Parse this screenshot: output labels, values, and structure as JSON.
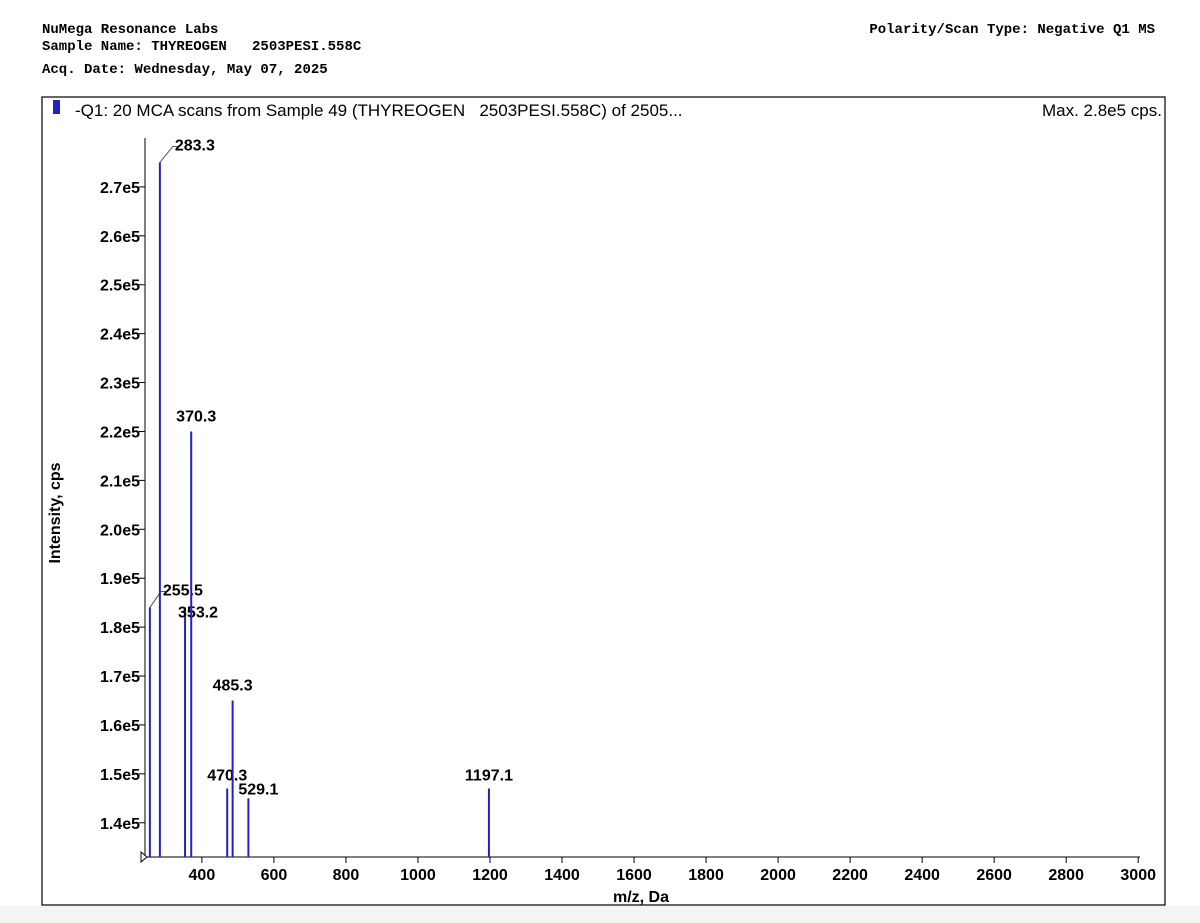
{
  "header": {
    "lab": "NuMega Resonance Labs",
    "sample_name": "Sample Name: THYREOGEN   2503PESI.558C",
    "acq_date": "Acq. Date: Wednesday, May 07, 2025",
    "polarity": "Polarity/Scan Type: Negative Q1 MS"
  },
  "chart_data": {
    "type": "stem",
    "max_label": "Max. 2.8e5 cps.",
    "x_label": "m/z, Da",
    "y_label": "Intensity, cps",
    "series": [
      {
        "name": "-Q1: 20 MCA scans from Sample 49 (THYREOGEN   2503PESI.558C) of 2505...",
        "color": "#2222c4",
        "x": [
          255.5,
          283.3,
          353.2,
          370.3,
          470.3,
          485.3,
          529.1,
          1197.1
        ],
        "values": [
          184000,
          275000,
          184000,
          220000,
          147000,
          165000,
          145000,
          147000
        ]
      }
    ],
    "xlim": [
      242,
      3005
    ],
    "ylim": [
      133000,
      280000
    ],
    "xticks": [
      400,
      600,
      800,
      1000,
      1200,
      1400,
      1600,
      1800,
      2000,
      2200,
      2400,
      2600,
      2800,
      3000
    ],
    "yticks": [
      {
        "value": 140000,
        "label": "1.4e5"
      },
      {
        "value": 150000,
        "label": "1.5e5"
      },
      {
        "value": 160000,
        "label": "1.6e5"
      },
      {
        "value": 170000,
        "label": "1.7e5"
      },
      {
        "value": 180000,
        "label": "1.8e5"
      },
      {
        "value": 190000,
        "label": "1.9e5"
      },
      {
        "value": 200000,
        "label": "2.0e5"
      },
      {
        "value": 210000,
        "label": "2.1e5"
      },
      {
        "value": 220000,
        "label": "2.2e5"
      },
      {
        "value": 230000,
        "label": "2.3e5"
      },
      {
        "value": 240000,
        "label": "2.4e5"
      },
      {
        "value": 250000,
        "label": "2.5e5"
      },
      {
        "value": 260000,
        "label": "2.6e5"
      },
      {
        "value": 270000,
        "label": "2.7e5"
      }
    ],
    "grid": false
  }
}
